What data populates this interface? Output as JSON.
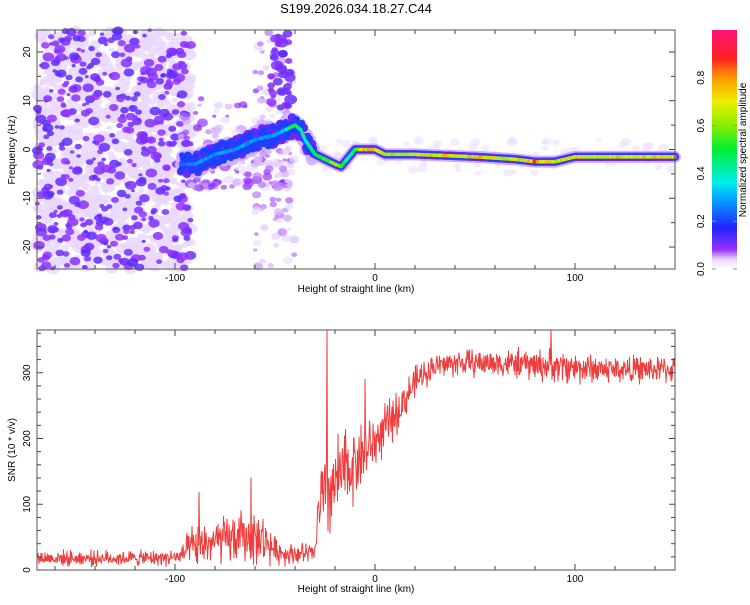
{
  "title": "S199.2026.034.18.27.C44",
  "chart_data": [
    {
      "type": "heatmap",
      "xlabel": "Height of straight line (km)",
      "ylabel": "Frequency (Hz)",
      "xlim": [
        -169,
        150
      ],
      "ylim": [
        -24.5,
        24.5
      ],
      "xticks": [
        -100,
        0,
        100
      ],
      "yticks": [
        -20,
        -10,
        0,
        10,
        20
      ],
      "colorbar": {
        "label": "Normalized spectral amplitude",
        "range": [
          0,
          1
        ],
        "ticks": [
          "0.0",
          "0.2",
          "0.4",
          "0.6",
          "0.8"
        ]
      },
      "ridge": {
        "height_km": [
          -97,
          -90,
          -80,
          -70,
          -60,
          -50,
          -45,
          -40,
          -37,
          -35,
          -30,
          -25,
          -20,
          -17,
          -14,
          -10,
          -5,
          0,
          5,
          20,
          50,
          70,
          80,
          90,
          100,
          120,
          150
        ],
        "frequency_hz": [
          -3,
          -3,
          -1,
          0,
          2,
          3,
          4,
          5,
          4,
          2,
          -1,
          -2,
          -3,
          -3.5,
          -2,
          0,
          0,
          0,
          -1,
          -1,
          -1.5,
          -2,
          -2.5,
          -2.5,
          -1.5,
          -1.5,
          -1.5
        ],
        "amplitude": [
          0.25,
          0.3,
          0.3,
          0.3,
          0.3,
          0.3,
          0.35,
          0.55,
          0.5,
          0.4,
          0.5,
          0.55,
          0.7,
          0.6,
          0.45,
          0.55,
          0.8,
          0.85,
          0.7,
          0.75,
          0.8,
          0.7,
          0.85,
          0.7,
          0.75,
          0.75,
          0.8
        ]
      },
      "noise_region_km": [
        -169,
        -95
      ],
      "noise_amplitude": 0.12
    },
    {
      "type": "line",
      "xlabel": "Height of straight line (km)",
      "ylabel": "SNR (10 * v/v)",
      "xlim": [
        -169,
        150
      ],
      "ylim": [
        0,
        365
      ],
      "xticks": [
        -100,
        0,
        100
      ],
      "yticks": [
        0,
        100,
        200,
        300
      ],
      "color": "#ee3333",
      "series": [
        {
          "name": "SNR",
          "x_km": [
            -170,
            -150,
            -130,
            -110,
            -97,
            -95,
            -90,
            -85,
            -75,
            -65,
            -55,
            -50,
            -45,
            -40,
            -30,
            -28,
            -25,
            -20,
            -15,
            -10,
            -5,
            0,
            5,
            10,
            15,
            20,
            25,
            30,
            40,
            60,
            80,
            100,
            120,
            150
          ],
          "trend": [
            18,
            18,
            18,
            18,
            20,
            28,
            35,
            40,
            45,
            50,
            45,
            30,
            25,
            25,
            25,
            100,
            110,
            130,
            150,
            165,
            180,
            195,
            215,
            235,
            260,
            285,
            300,
            310,
            315,
            315,
            312,
            308,
            305,
            305
          ],
          "spread": [
            14,
            14,
            14,
            14,
            16,
            25,
            45,
            40,
            45,
            50,
            45,
            25,
            20,
            20,
            20,
            80,
            90,
            90,
            80,
            70,
            60,
            50,
            45,
            40,
            35,
            30,
            25,
            25,
            25,
            25,
            30,
            30,
            25,
            25
          ],
          "peaks": [
            [
              -88,
              118
            ],
            [
              -62,
              140
            ],
            [
              -24,
              365
            ],
            [
              -5,
              290
            ],
            [
              88,
              365
            ]
          ]
        }
      ]
    }
  ]
}
